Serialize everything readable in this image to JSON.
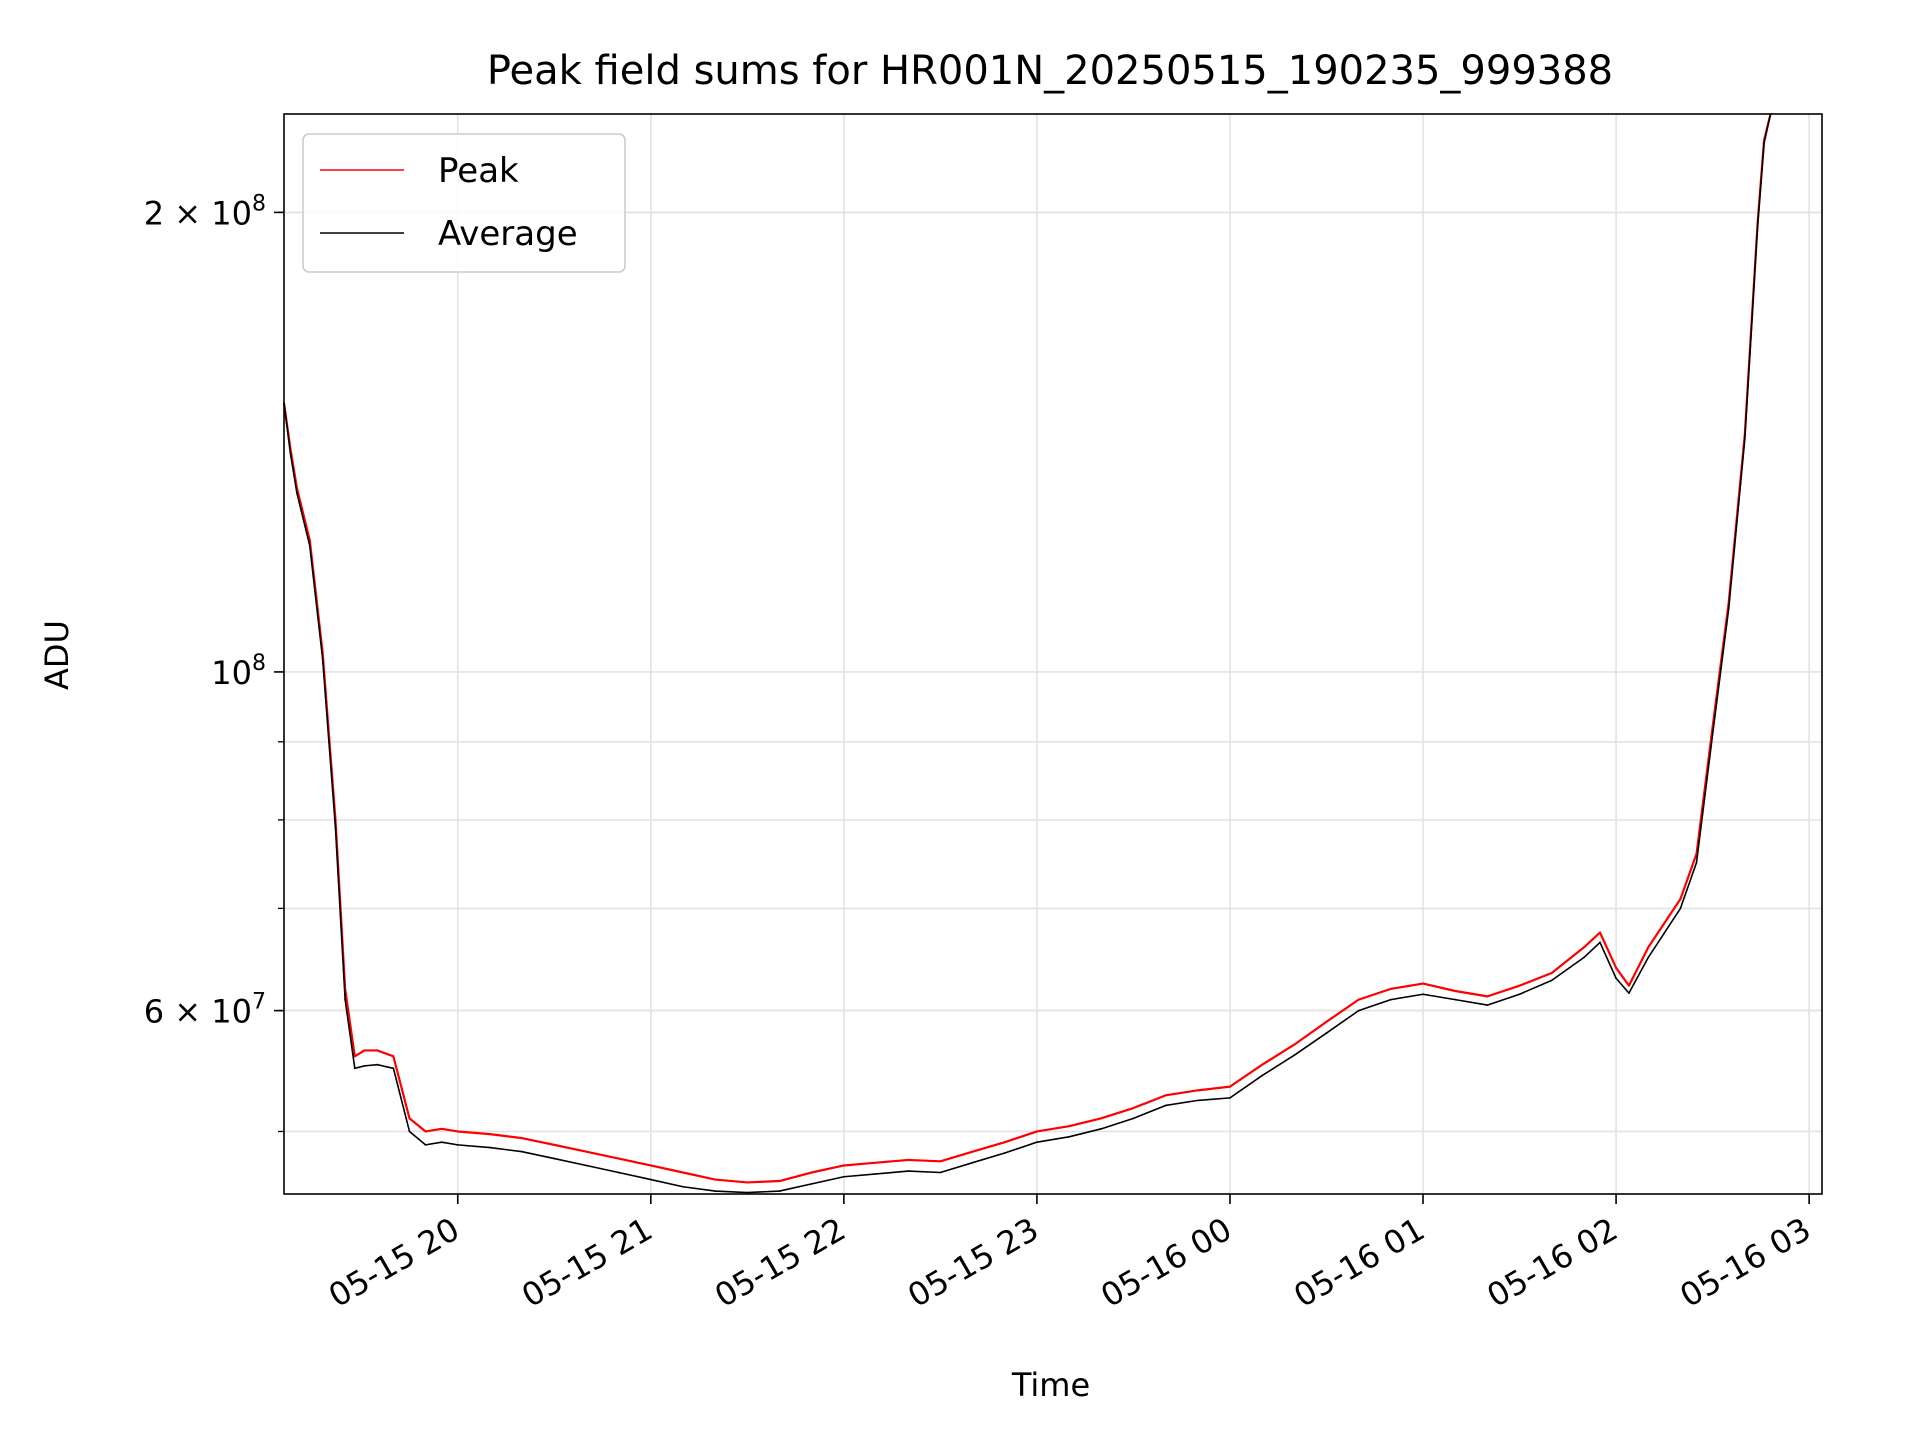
{
  "chart_data": {
    "type": "line",
    "title": "Peak field sums for HR001N_20250515_190235_999388",
    "xlabel": "Time",
    "ylabel": "ADU",
    "yscale": "log",
    "grid": true,
    "legend_position": "upper-left",
    "xlim": [
      "2025-05-15 19:06",
      "2025-05-16 03:04"
    ],
    "ylim": [
      45500000,
      232000000
    ],
    "x_ticks": [
      {
        "value": "2025-05-15 20:00",
        "label": "05-15 20"
      },
      {
        "value": "2025-05-15 21:00",
        "label": "05-15 21"
      },
      {
        "value": "2025-05-15 22:00",
        "label": "05-15 22"
      },
      {
        "value": "2025-05-15 23:00",
        "label": "05-15 23"
      },
      {
        "value": "2025-05-16 00:00",
        "label": "05-16 00"
      },
      {
        "value": "2025-05-16 01:00",
        "label": "05-16 01"
      },
      {
        "value": "2025-05-16 02:00",
        "label": "05-16 02"
      },
      {
        "value": "2025-05-16 03:00",
        "label": "05-16 03"
      }
    ],
    "y_major_ticks": [
      {
        "value": 60000000,
        "mantissa": "6",
        "exponent": "7"
      },
      {
        "value": 100000000,
        "mantissa": "",
        "exponent": "8"
      },
      {
        "value": 200000000,
        "mantissa": "2",
        "exponent": "8"
      }
    ],
    "y_minor_ticks": [
      50000000,
      60000000,
      70000000,
      80000000,
      90000000,
      200000000
    ],
    "series": [
      {
        "name": "Peak",
        "color": "#ff0000",
        "x": [
          "2025-05-15 19:06",
          "2025-05-15 19:08",
          "2025-05-15 19:10",
          "2025-05-15 19:14",
          "2025-05-15 19:18",
          "2025-05-15 19:22",
          "2025-05-15 19:25",
          "2025-05-15 19:28",
          "2025-05-15 19:31",
          "2025-05-15 19:35",
          "2025-05-15 19:40",
          "2025-05-15 19:45",
          "2025-05-15 19:50",
          "2025-05-15 19:55",
          "2025-05-15 20:00",
          "2025-05-15 20:10",
          "2025-05-15 20:20",
          "2025-05-15 20:30",
          "2025-05-15 20:40",
          "2025-05-15 20:50",
          "2025-05-15 21:00",
          "2025-05-15 21:10",
          "2025-05-15 21:20",
          "2025-05-15 21:30",
          "2025-05-15 21:40",
          "2025-05-15 21:50",
          "2025-05-15 22:00",
          "2025-05-15 22:10",
          "2025-05-15 22:20",
          "2025-05-15 22:30",
          "2025-05-15 22:40",
          "2025-05-15 22:50",
          "2025-05-15 23:00",
          "2025-05-15 23:10",
          "2025-05-15 23:20",
          "2025-05-15 23:30",
          "2025-05-15 23:40",
          "2025-05-15 23:50",
          "2025-05-16 00:00",
          "2025-05-16 00:10",
          "2025-05-16 00:20",
          "2025-05-16 00:30",
          "2025-05-16 00:40",
          "2025-05-16 00:50",
          "2025-05-16 01:00",
          "2025-05-16 01:10",
          "2025-05-16 01:20",
          "2025-05-16 01:30",
          "2025-05-16 01:40",
          "2025-05-16 01:50",
          "2025-05-16 01:55",
          "2025-05-16 02:00",
          "2025-05-16 02:04",
          "2025-05-16 02:10",
          "2025-05-16 02:20",
          "2025-05-16 02:25",
          "2025-05-16 02:30",
          "2025-05-16 02:35",
          "2025-05-16 02:40",
          "2025-05-16 02:44",
          "2025-05-16 02:46",
          "2025-05-16 02:48"
        ],
        "y": [
          150000000,
          140000000,
          132000000,
          122000000,
          103000000,
          80000000,
          62000000,
          56000000,
          56500000,
          56500000,
          56000000,
          51000000,
          50000000,
          50200000,
          50000000,
          49800000,
          49500000,
          49000000,
          48500000,
          48000000,
          47500000,
          47000000,
          46500000,
          46300000,
          46400000,
          47000000,
          47500000,
          47700000,
          47900000,
          47800000,
          48500000,
          49200000,
          50000000,
          50400000,
          51000000,
          51800000,
          52800000,
          53200000,
          53500000,
          55300000,
          57000000,
          59000000,
          61000000,
          62000000,
          62500000,
          61800000,
          61300000,
          62300000,
          63500000,
          66000000,
          67500000,
          64000000,
          62300000,
          66000000,
          71000000,
          76000000,
          92000000,
          111000000,
          143000000,
          197000000,
          223000000,
          232000000
        ]
      },
      {
        "name": "Average",
        "color": "#000000",
        "x": [
          "2025-05-15 19:06",
          "2025-05-15 19:08",
          "2025-05-15 19:10",
          "2025-05-15 19:14",
          "2025-05-15 19:18",
          "2025-05-15 19:22",
          "2025-05-15 19:25",
          "2025-05-15 19:28",
          "2025-05-15 19:31",
          "2025-05-15 19:35",
          "2025-05-15 19:40",
          "2025-05-15 19:45",
          "2025-05-15 19:50",
          "2025-05-15 19:55",
          "2025-05-15 20:00",
          "2025-05-15 20:10",
          "2025-05-15 20:20",
          "2025-05-15 20:30",
          "2025-05-15 20:40",
          "2025-05-15 20:50",
          "2025-05-15 21:00",
          "2025-05-15 21:10",
          "2025-05-15 21:20",
          "2025-05-15 21:30",
          "2025-05-15 21:40",
          "2025-05-15 21:50",
          "2025-05-15 22:00",
          "2025-05-15 22:10",
          "2025-05-15 22:20",
          "2025-05-15 22:30",
          "2025-05-15 22:40",
          "2025-05-15 22:50",
          "2025-05-15 23:00",
          "2025-05-15 23:10",
          "2025-05-15 23:20",
          "2025-05-15 23:30",
          "2025-05-15 23:40",
          "2025-05-15 23:50",
          "2025-05-16 00:00",
          "2025-05-16 00:10",
          "2025-05-16 00:20",
          "2025-05-16 00:30",
          "2025-05-16 00:40",
          "2025-05-16 00:50",
          "2025-05-16 01:00",
          "2025-05-16 01:10",
          "2025-05-16 01:20",
          "2025-05-16 01:30",
          "2025-05-16 01:40",
          "2025-05-16 01:50",
          "2025-05-16 01:55",
          "2025-05-16 02:00",
          "2025-05-16 02:04",
          "2025-05-16 02:10",
          "2025-05-16 02:20",
          "2025-05-16 02:25",
          "2025-05-16 02:30",
          "2025-05-16 02:35",
          "2025-05-16 02:40",
          "2025-05-16 02:44",
          "2025-05-16 02:46",
          "2025-05-16 02:48"
        ],
        "y": [
          150000000,
          139000000,
          131000000,
          121000000,
          102000000,
          79000000,
          61000000,
          55000000,
          55200000,
          55300000,
          55000000,
          50000000,
          49000000,
          49200000,
          49000000,
          48800000,
          48500000,
          48000000,
          47500000,
          47000000,
          46500000,
          46000000,
          45700000,
          45600000,
          45700000,
          46200000,
          46700000,
          46900000,
          47100000,
          47000000,
          47700000,
          48400000,
          49200000,
          49600000,
          50200000,
          51000000,
          52000000,
          52400000,
          52600000,
          54400000,
          56100000,
          58000000,
          60000000,
          61000000,
          61500000,
          61000000,
          60500000,
          61500000,
          62800000,
          65000000,
          66500000,
          63000000,
          61600000,
          65000000,
          70000000,
          75000000,
          91000000,
          110000000,
          142000000,
          196000000,
          222000000,
          232000000
        ]
      }
    ]
  }
}
